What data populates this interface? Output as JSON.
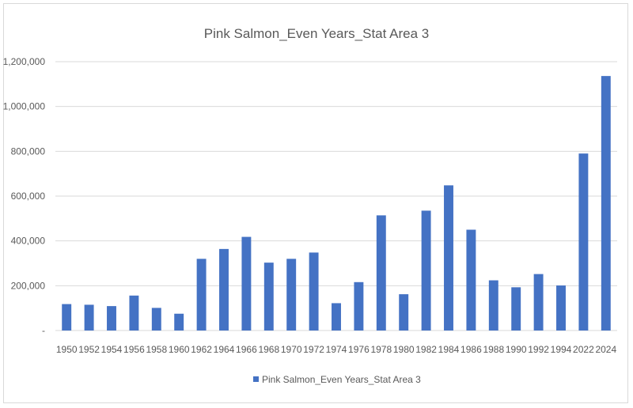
{
  "chart_data": {
    "type": "bar",
    "title": "Pink Salmon_Even Years_Stat Area 3",
    "categories": [
      "1950",
      "1952",
      "1954",
      "1956",
      "1958",
      "1960",
      "1962",
      "1964",
      "1966",
      "1968",
      "1970",
      "1972",
      "1974",
      "1976",
      "1978",
      "1980",
      "1982",
      "1984",
      "1986",
      "1988",
      "1990",
      "1992",
      "1994",
      "2022",
      "2024"
    ],
    "series": [
      {
        "name": "Pink Salmon_Even Years_Stat Area 3",
        "values": [
          118000,
          115000,
          109000,
          156000,
          101000,
          75000,
          320000,
          364000,
          418000,
          303000,
          320000,
          348000,
          122000,
          216000,
          514000,
          162000,
          535000,
          648000,
          450000,
          224000,
          193000,
          252000,
          201000,
          790000,
          1136000
        ]
      }
    ],
    "ylim": [
      0,
      1200000
    ],
    "y_ticks": [
      {
        "value": 0,
        "label": "-"
      },
      {
        "value": 200000,
        "label": "200,000"
      },
      {
        "value": 400000,
        "label": "400,000"
      },
      {
        "value": 600000,
        "label": "600,000"
      },
      {
        "value": 800000,
        "label": "800,000"
      },
      {
        "value": 1000000,
        "label": "1,000,000"
      },
      {
        "value": 1200000,
        "label": "1,200,000"
      }
    ],
    "gridlines": true,
    "legend_position": "bottom",
    "bar_color": "#4472c4"
  }
}
